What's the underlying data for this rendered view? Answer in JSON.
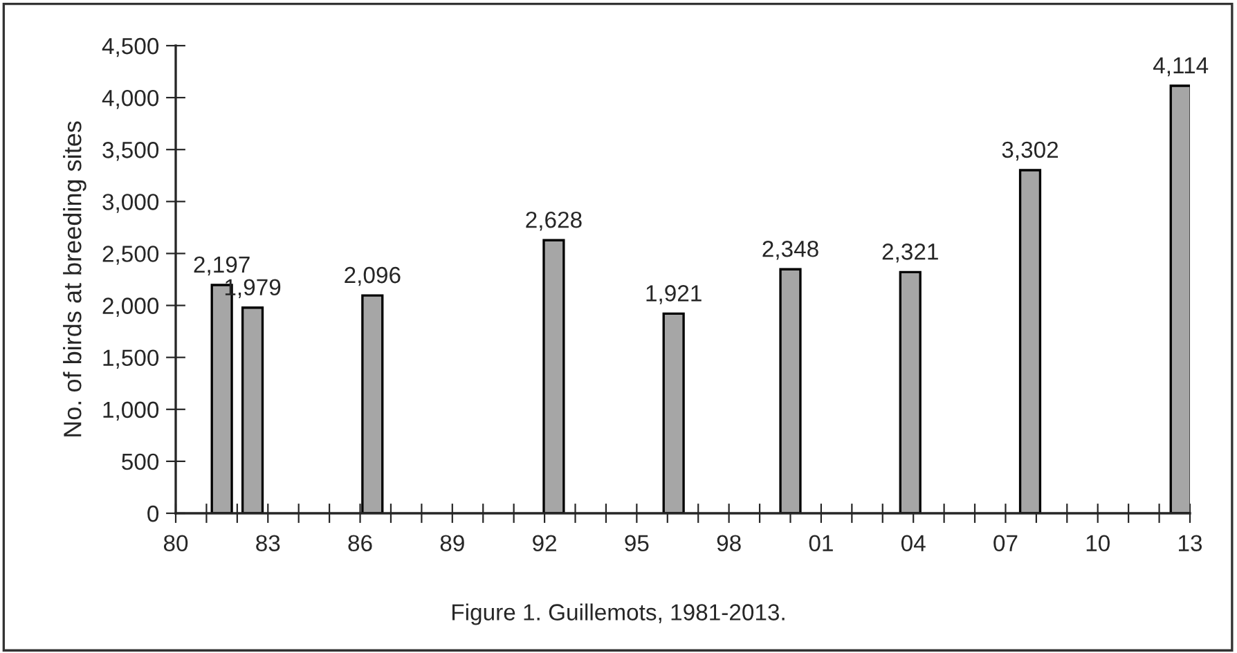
{
  "chart_data": {
    "type": "bar",
    "ylabel": "No. of birds at breeding sites",
    "annotations": [
      "Figure 1. Guillemots, 1981-2013."
    ],
    "x": [
      1981.5,
      1982.5,
      1986.4,
      1992.3,
      1996.2,
      2000,
      2003.9,
      2007.8,
      2012.7
    ],
    "values": [
      2197,
      1979,
      2096,
      2628,
      1921,
      2348,
      2321,
      3302,
      4114
    ],
    "value_labels": [
      "2,197",
      "1,979",
      "2,096",
      "2,628",
      "1,921",
      "2,348",
      "2,321",
      "3,302",
      "4,114"
    ],
    "color": "#a6a6a6",
    "xlim": [
      1980,
      2013
    ],
    "xticks": [
      {
        "value": 1980,
        "label": "80"
      },
      {
        "value": 1981,
        "label": null
      },
      {
        "value": 1982,
        "label": null
      },
      {
        "value": 1983,
        "label": "83"
      },
      {
        "value": 1984,
        "label": null
      },
      {
        "value": 1985,
        "label": null
      },
      {
        "value": 1986,
        "label": "86"
      },
      {
        "value": 1987,
        "label": null
      },
      {
        "value": 1988,
        "label": null
      },
      {
        "value": 1989,
        "label": "89"
      },
      {
        "value": 1990,
        "label": null
      },
      {
        "value": 1991,
        "label": null
      },
      {
        "value": 1992,
        "label": "92"
      },
      {
        "value": 1993,
        "label": null
      },
      {
        "value": 1994,
        "label": null
      },
      {
        "value": 1995,
        "label": "95"
      },
      {
        "value": 1996,
        "label": null
      },
      {
        "value": 1997,
        "label": null
      },
      {
        "value": 1998,
        "label": "98"
      },
      {
        "value": 1999,
        "label": null
      },
      {
        "value": 2000,
        "label": null
      },
      {
        "value": 2001,
        "label": "01"
      },
      {
        "value": 2002,
        "label": null
      },
      {
        "value": 2003,
        "label": null
      },
      {
        "value": 2004,
        "label": "04"
      },
      {
        "value": 2005,
        "label": null
      },
      {
        "value": 2006,
        "label": null
      },
      {
        "value": 2007,
        "label": "07"
      },
      {
        "value": 2008,
        "label": null
      },
      {
        "value": 2009,
        "label": null
      },
      {
        "value": 2010,
        "label": "10"
      },
      {
        "value": 2011,
        "label": null
      },
      {
        "value": 2012,
        "label": null
      },
      {
        "value": 2013,
        "label": "13"
      }
    ],
    "ylim": [
      0,
      4500
    ],
    "yticks": [
      {
        "value": 0,
        "label": "0"
      },
      {
        "value": 500,
        "label": "500"
      },
      {
        "value": 1000,
        "label": "1,000"
      },
      {
        "value": 1500,
        "label": "1,500"
      },
      {
        "value": 2000,
        "label": "2,000"
      },
      {
        "value": 2500,
        "label": "2,500"
      },
      {
        "value": 3000,
        "label": "3,000"
      },
      {
        "value": 3500,
        "label": "3,500"
      },
      {
        "value": 4000,
        "label": "4,000"
      },
      {
        "value": 4500,
        "label": "4,500"
      }
    ],
    "grid": false,
    "legend": false
  }
}
